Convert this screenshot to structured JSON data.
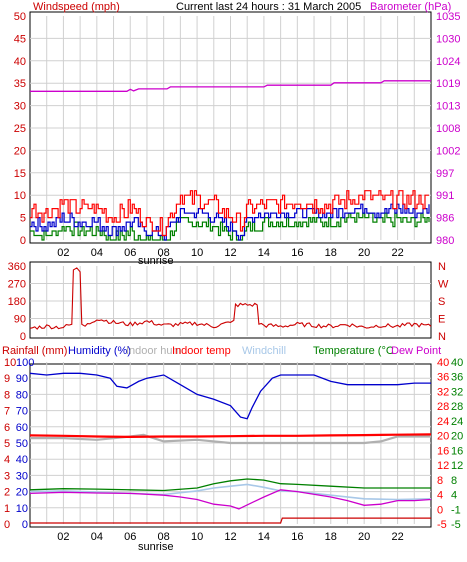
{
  "header": {
    "left_label": "Windspeed (mph)",
    "center_label": "Current last 24 hours : 31 March 2005",
    "right_label": "Barometer (hPa)"
  },
  "panel3_labels": {
    "rainfall": "Rainfall (mm)",
    "humidity": "Humidity (%)",
    "indoor_humidity": "Indoor hum",
    "indoor_temp": "Indoor temp",
    "windchill": "Windchill",
    "temperature": "Temperature (°C",
    "dew_point": "Dew Point"
  },
  "sunrise_label": "sunrise",
  "colors": {
    "windspeed_label": "#cc0000",
    "barometer": "#cc00cc",
    "gust": "#ff0000",
    "wind_avg": "#0000cc",
    "wind_low": "#008000",
    "direction": "#cc0000",
    "humidity": "#0000cc",
    "indoor_humidity": "#b0b0b0",
    "indoor_temp": "#ff0000",
    "windchill": "#a8c8e8",
    "temperature": "#008000",
    "dew_point": "#cc00cc",
    "rainfall": "#cc0000",
    "grid": "#d0d0d0"
  },
  "chart_data": [
    {
      "type": "line",
      "id": "wind-barometer",
      "x_ticks": [
        "02",
        "04",
        "06",
        "08",
        "10",
        "12",
        "14",
        "16",
        "18",
        "20",
        "22"
      ],
      "x_range": [
        0,
        24
      ],
      "left_axis": {
        "label": "Windspeed (mph)",
        "range": [
          0,
          50
        ],
        "ticks": [
          "0",
          "5",
          "10",
          "15",
          "20",
          "25",
          "30",
          "35",
          "40",
          "45",
          "50"
        ]
      },
      "right_axis": {
        "label": "Barometer (hPa)",
        "range": [
          980,
          1035
        ],
        "ticks": [
          "980",
          "986",
          "991",
          "997",
          "1002",
          "1008",
          "1013",
          "1019",
          "1024",
          "1030",
          "1035"
        ]
      },
      "barometer": {
        "x": [
          0,
          4,
          5.8,
          6.0,
          6.2,
          6.5,
          8.2,
          8.4,
          12.5,
          14,
          14.2,
          18,
          18.2,
          21,
          21.2,
          24
        ],
        "y": [
          1016.5,
          1016.5,
          1016.5,
          1017.0,
          1016.6,
          1017.1,
          1017.1,
          1017.6,
          1017.6,
          1017.6,
          1018.0,
          1018.0,
          1018.6,
          1018.6,
          1019.1,
          1019.1
        ]
      },
      "wind_profile": {
        "x": [
          0,
          1,
          2,
          3,
          4,
          5,
          6,
          7,
          8,
          9,
          10,
          11,
          12,
          12.7,
          13,
          14,
          15,
          16,
          17,
          18,
          19,
          20,
          21,
          22,
          23,
          24
        ],
        "gust": [
          7,
          6,
          8,
          7,
          7,
          5,
          7,
          4,
          3,
          10,
          9,
          8,
          5,
          4,
          7,
          8,
          8,
          9,
          8,
          8,
          9,
          10,
          9,
          9,
          9,
          9
        ],
        "average": [
          4,
          3,
          5,
          4,
          4,
          2,
          4,
          2,
          1,
          6,
          6,
          5,
          3,
          1,
          5,
          6,
          6,
          6,
          6,
          6,
          7,
          7,
          6,
          7,
          6,
          7
        ],
        "low": [
          2,
          1,
          3,
          2,
          2,
          0,
          2,
          0,
          0,
          4,
          4,
          3,
          1,
          0,
          3,
          4,
          4,
          4,
          4,
          4,
          5,
          5,
          4,
          5,
          4,
          5
        ]
      }
    },
    {
      "type": "line",
      "id": "wind-direction",
      "x_range": [
        0,
        24
      ],
      "left_axis": {
        "range": [
          0,
          360
        ],
        "ticks": [
          "0",
          "90",
          "180",
          "270",
          "360"
        ]
      },
      "right_axis": {
        "ticks": [
          "N",
          "E",
          "S",
          "W",
          "N"
        ]
      },
      "direction": {
        "x": [
          0,
          1,
          2,
          2.5,
          2.6,
          2.8,
          3.0,
          3.1,
          3.3,
          4,
          5,
          6,
          7,
          8,
          9,
          10,
          11,
          12,
          12.2,
          12.3,
          13.6,
          13.7,
          14,
          15,
          16,
          17,
          18,
          19,
          20,
          21,
          22,
          23,
          24
        ],
        "y": [
          40,
          50,
          45,
          60,
          340,
          350,
          330,
          60,
          50,
          90,
          70,
          60,
          75,
          55,
          60,
          65,
          50,
          70,
          80,
          160,
          160,
          65,
          55,
          50,
          60,
          55,
          50,
          60,
          45,
          55,
          50,
          60,
          50
        ]
      }
    },
    {
      "type": "line",
      "id": "rain-humidity-temperature",
      "x_range": [
        0,
        24
      ],
      "left_axis_rain": {
        "label": "Rainfall (mm)",
        "ticks": [
          "0",
          "1",
          "2",
          "3",
          "4",
          "5",
          "6",
          "7",
          "8",
          "9",
          "10"
        ]
      },
      "left_axis_humidity": {
        "label": "Humidity (%)",
        "range": [
          0,
          100
        ],
        "ticks": [
          "0",
          "10",
          "20",
          "30",
          "40",
          "50",
          "60",
          "70",
          "80",
          "90",
          "100"
        ]
      },
      "right_axis_indoor": {
        "label": "Indoor temp",
        "range": [
          -5,
          40
        ],
        "ticks": [
          "-5",
          "0",
          "4",
          "8",
          "12",
          "16",
          "20",
          "24",
          "28",
          "32",
          "36",
          "40"
        ]
      },
      "right_axis_temp": {
        "label": "Temperature (°C)",
        "range": [
          -5,
          40
        ],
        "ticks": [
          "-5",
          "-1",
          "4",
          "8",
          "12",
          "16",
          "20",
          "24",
          "28",
          "32",
          "36",
          "40"
        ]
      },
      "humidity": {
        "x": [
          0,
          1,
          2,
          3,
          4,
          4.8,
          5.2,
          5.8,
          6.5,
          7,
          8,
          9,
          10,
          11,
          12,
          12.6,
          13.0,
          13.3,
          13.8,
          14.5,
          15,
          16,
          17,
          18,
          19,
          20,
          21,
          22,
          23,
          24
        ],
        "y": [
          93,
          92,
          93,
          93,
          92,
          90,
          85,
          84,
          88,
          90,
          92,
          86,
          80,
          77,
          73,
          66,
          65,
          72,
          82,
          90,
          92,
          92,
          92,
          88,
          86,
          86,
          86,
          86,
          87,
          87
        ]
      },
      "indoor_humidity": {
        "x": [
          0,
          2,
          4,
          6,
          6.8,
          8,
          10,
          12,
          14,
          16,
          18,
          20,
          21,
          22,
          24
        ],
        "y": [
          53,
          53,
          52,
          54,
          55,
          51,
          52,
          50,
          50,
          50,
          50,
          50,
          51,
          54,
          54
        ]
      },
      "indoor_temp": {
        "x": [
          0,
          2,
          4,
          6,
          8,
          10,
          12,
          14,
          16,
          18,
          20,
          22,
          24
        ],
        "y": [
          19.6,
          19.5,
          19.3,
          19.2,
          19.3,
          19.3,
          19.4,
          19.5,
          19.5,
          19.6,
          19.7,
          19.8,
          19.9
        ]
      },
      "windchill": {
        "x": [
          0,
          2,
          4,
          6,
          8,
          10,
          11,
          12,
          13,
          14,
          15,
          16,
          18,
          20,
          22,
          24
        ],
        "y": [
          4.0,
          4.2,
          3.9,
          3.5,
          3.2,
          4.2,
          5.0,
          5.5,
          6.0,
          5.2,
          4.2,
          4.0,
          3.0,
          2.0,
          1.8,
          2.0
        ]
      },
      "temperature": {
        "x": [
          0,
          2,
          4,
          6,
          8,
          10,
          11,
          12,
          13,
          14,
          15,
          16,
          18,
          20,
          22,
          24
        ],
        "y": [
          4.5,
          4.8,
          4.7,
          4.5,
          4.3,
          5.0,
          6.2,
          7.0,
          7.5,
          7.2,
          6.2,
          6.0,
          5.5,
          5.0,
          5.0,
          5.0
        ]
      },
      "dew_point": {
        "x": [
          0,
          2,
          4,
          6,
          8,
          9,
          10,
          11,
          12,
          12.5,
          13,
          14,
          15,
          16,
          18,
          19,
          20,
          21,
          22,
          23,
          24
        ],
        "y": [
          3.5,
          3.8,
          3.6,
          3.5,
          3.0,
          2.5,
          1.8,
          0.5,
          0.0,
          -0.8,
          0.3,
          2.5,
          4.5,
          4.0,
          2.5,
          1.5,
          0.2,
          0.5,
          1.5,
          1.5,
          1.8
        ]
      },
      "rainfall": {
        "x": [
          0,
          15,
          15.1,
          24
        ],
        "y": [
          0,
          0,
          0.3,
          0.3
        ]
      }
    }
  ]
}
